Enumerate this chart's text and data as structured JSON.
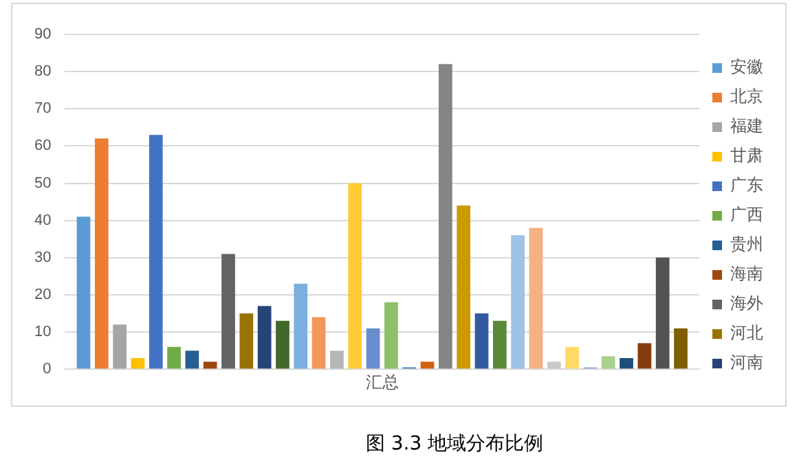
{
  "chart_data": {
    "type": "bar",
    "categories": [
      "汇总"
    ],
    "series": [
      {
        "name": "安徽",
        "color": "#5b9bd5",
        "values": [
          41
        ]
      },
      {
        "name": "北京",
        "color": "#ed7d31",
        "values": [
          62
        ]
      },
      {
        "name": "福建",
        "color": "#a5a5a5",
        "values": [
          12
        ]
      },
      {
        "name": "甘肃",
        "color": "#ffc000",
        "values": [
          3
        ]
      },
      {
        "name": "广东",
        "color": "#4472c4",
        "values": [
          63
        ]
      },
      {
        "name": "广西",
        "color": "#70ad47",
        "values": [
          6
        ]
      },
      {
        "name": "贵州",
        "color": "#255e91",
        "values": [
          5
        ]
      },
      {
        "name": "海南",
        "color": "#9e480e",
        "values": [
          2
        ]
      },
      {
        "name": "海外",
        "color": "#636363",
        "values": [
          31
        ]
      },
      {
        "name": "河北",
        "color": "#997300",
        "values": [
          15
        ]
      },
      {
        "name": "河南",
        "color": "#264478",
        "values": [
          17
        ]
      },
      {
        "color": "#43682b",
        "values": [
          13
        ]
      },
      {
        "color": "#7cafdd",
        "values": [
          23
        ]
      },
      {
        "color": "#f1975a",
        "values": [
          14
        ]
      },
      {
        "color": "#b7b7b7",
        "values": [
          5
        ]
      },
      {
        "color": "#ffcd33",
        "values": [
          50
        ]
      },
      {
        "color": "#698ed0",
        "values": [
          11
        ]
      },
      {
        "color": "#8cc168",
        "values": [
          18
        ]
      },
      {
        "color": "#327dc2",
        "values": [
          0.5
        ]
      },
      {
        "color": "#d26012",
        "values": [
          2
        ]
      },
      {
        "color": "#848484",
        "values": [
          82
        ]
      },
      {
        "color": "#cc9a00",
        "values": [
          44
        ]
      },
      {
        "color": "#335aa1",
        "values": [
          15
        ]
      },
      {
        "color": "#5a8a39",
        "values": [
          13
        ]
      },
      {
        "color": "#9dc3e6",
        "values": [
          36
        ]
      },
      {
        "color": "#f4b183",
        "values": [
          38
        ]
      },
      {
        "color": "#c9c9c9",
        "values": [
          2
        ]
      },
      {
        "color": "#ffd966",
        "values": [
          6
        ]
      },
      {
        "color": "#8faadc",
        "values": [
          0.5
        ]
      },
      {
        "color": "#a9d18e",
        "values": [
          3.5
        ]
      },
      {
        "color": "#1f4e79",
        "values": [
          3
        ]
      },
      {
        "color": "#843c0c",
        "values": [
          7
        ]
      },
      {
        "color": "#525252",
        "values": [
          30
        ]
      },
      {
        "color": "#7f6000",
        "values": [
          11
        ]
      }
    ],
    "ylim": [
      0,
      90
    ],
    "yticks": [
      0,
      10,
      20,
      30,
      40,
      50,
      60,
      70,
      80,
      90
    ],
    "grid": "y",
    "legend": "right",
    "annotations": [
      "图 3.3 地域分布比例"
    ]
  }
}
